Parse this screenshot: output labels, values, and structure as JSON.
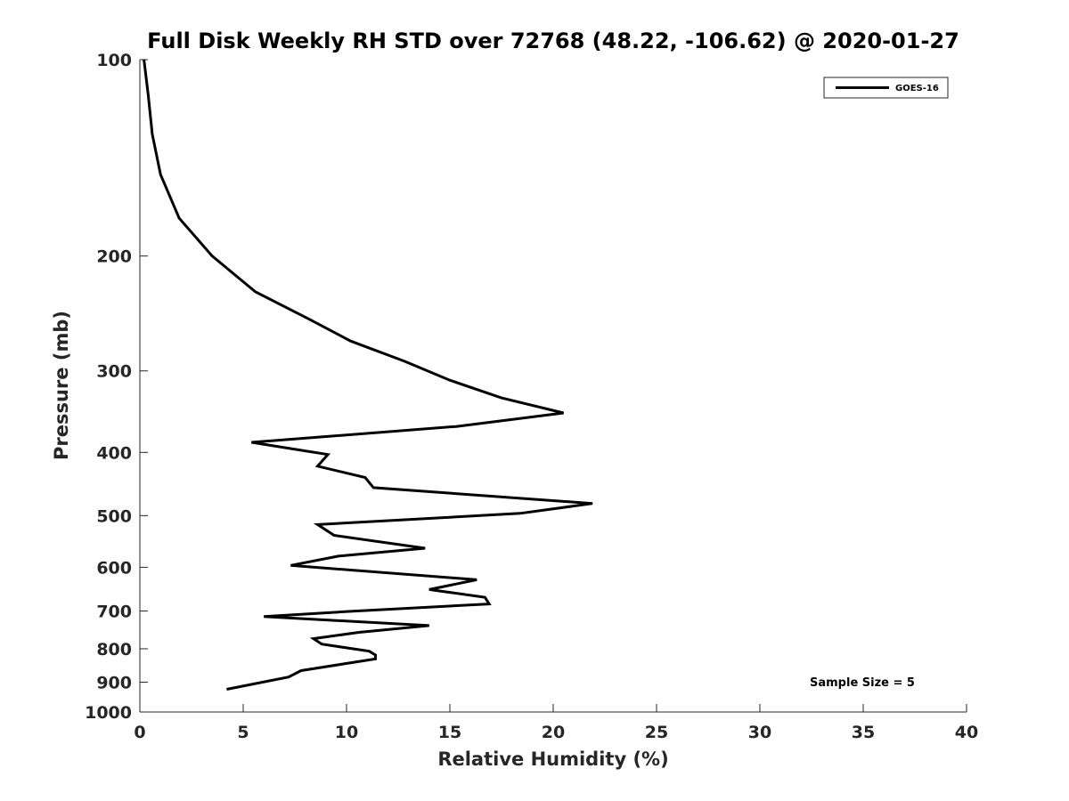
{
  "chart_data": {
    "type": "line",
    "title": "Full Disk Weekly RH STD over 72768 (48.22, -106.62) @ 2020-01-27",
    "xlabel": "Relative Humidity (%)",
    "ylabel": "Pressure (mb)",
    "xlim": [
      0,
      40
    ],
    "ylim": [
      100,
      1000
    ],
    "y_scale": "log",
    "y_reversed": true,
    "grid": false,
    "legend_position": "top-right",
    "x_ticks": [
      0,
      5,
      10,
      15,
      20,
      25,
      30,
      35,
      40
    ],
    "x_tick_labels": [
      "0",
      "5",
      "10",
      "15",
      "20",
      "25",
      "30",
      "35",
      "40"
    ],
    "y_ticks": [
      100,
      200,
      300,
      400,
      500,
      600,
      700,
      800,
      900,
      1000
    ],
    "y_tick_labels": [
      "100",
      "200",
      "300",
      "400",
      "500",
      "600",
      "700",
      "800",
      "900",
      "1000"
    ],
    "series": [
      {
        "name": "GOES-16",
        "color": "#000000",
        "x": [
          0.2,
          0.4,
          0.6,
          1.0,
          1.9,
          3.5,
          5.6,
          8.2,
          10.2,
          12.8,
          15.0,
          17.5,
          20.5,
          15.3,
          5.4,
          9.1,
          8.6,
          10.9,
          11.3,
          21.9,
          18.4,
          8.6,
          9.4,
          13.8,
          9.6,
          7.3,
          16.3,
          14.0,
          16.7,
          16.9,
          10.2,
          6.0,
          14.0,
          10.6,
          8.4,
          8.8,
          11.1,
          11.4,
          11.4,
          7.8,
          7.2,
          4.2
        ],
        "y": [
          100,
          113,
          130,
          150,
          175,
          200,
          227,
          250,
          270,
          290,
          310,
          330,
          348,
          365,
          386,
          403,
          420,
          437,
          453,
          479,
          496,
          516,
          536,
          561,
          577,
          596,
          627,
          649,
          667,
          683,
          701,
          714,
          737,
          755,
          772,
          787,
          807,
          818,
          829,
          864,
          884,
          923
        ]
      }
    ],
    "annotations": [
      "Sample Size = 5"
    ]
  }
}
